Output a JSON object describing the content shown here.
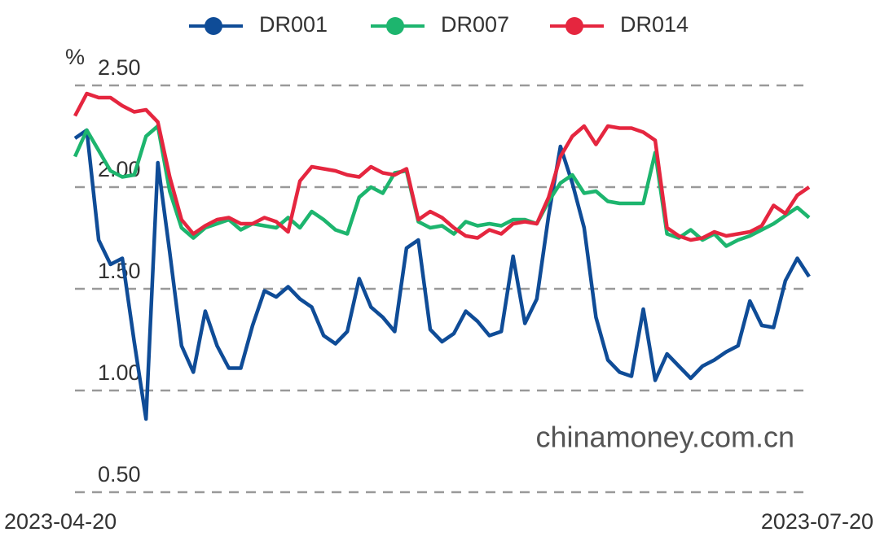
{
  "chart_data": {
    "type": "line",
    "y_unit": "%",
    "watermark": "chinamoney.com.cn",
    "categories": [
      "2023-04-20",
      null,
      null,
      null,
      null,
      null,
      null,
      null,
      null,
      null,
      null,
      null,
      null,
      null,
      null,
      null,
      null,
      null,
      null,
      null,
      null,
      null,
      null,
      null,
      null,
      null,
      null,
      null,
      null,
      null,
      null,
      null,
      null,
      null,
      null,
      null,
      null,
      null,
      null,
      null,
      null,
      null,
      null,
      null,
      null,
      null,
      null,
      null,
      null,
      null,
      null,
      null,
      null,
      null,
      null,
      null,
      null,
      null,
      null,
      null,
      null,
      null,
      "2023-07-20"
    ],
    "series": [
      {
        "name": "DR001",
        "color": "#0f4c97",
        "values": [
          2.24,
          2.28,
          1.74,
          1.62,
          1.65,
          1.24,
          0.86,
          2.12,
          1.68,
          1.22,
          1.09,
          1.39,
          1.22,
          1.11,
          1.11,
          1.32,
          1.49,
          1.46,
          1.51,
          1.45,
          1.41,
          1.27,
          1.23,
          1.29,
          1.55,
          1.41,
          1.36,
          1.29,
          1.7,
          1.74,
          1.3,
          1.24,
          1.28,
          1.39,
          1.34,
          1.27,
          1.29,
          1.66,
          1.33,
          1.45,
          1.86,
          2.2,
          2.02,
          1.8,
          1.36,
          1.15,
          1.09,
          1.07,
          1.4,
          1.05,
          1.18,
          1.12,
          1.06,
          1.12,
          1.15,
          1.19,
          1.22,
          1.44,
          1.32,
          1.31,
          1.54,
          1.65,
          1.56
        ]
      },
      {
        "name": "DR007",
        "color": "#1db56e",
        "values": [
          2.15,
          2.28,
          2.18,
          2.08,
          2.05,
          2.06,
          2.25,
          2.3,
          1.98,
          1.8,
          1.75,
          1.8,
          1.82,
          1.84,
          1.79,
          1.82,
          1.81,
          1.8,
          1.85,
          1.8,
          1.88,
          1.84,
          1.79,
          1.77,
          1.95,
          2.0,
          1.97,
          2.07,
          2.08,
          1.83,
          1.8,
          1.81,
          1.77,
          1.83,
          1.81,
          1.82,
          1.81,
          1.84,
          1.84,
          1.82,
          1.93,
          2.02,
          2.06,
          1.97,
          1.98,
          1.93,
          1.92,
          1.92,
          1.92,
          2.17,
          1.77,
          1.75,
          1.79,
          1.74,
          1.77,
          1.71,
          1.74,
          1.76,
          1.79,
          1.82,
          1.86,
          1.9,
          1.85
        ]
      },
      {
        "name": "DR014",
        "color": "#e5263f",
        "values": [
          2.35,
          2.46,
          2.44,
          2.44,
          2.4,
          2.37,
          2.38,
          2.32,
          2.05,
          1.84,
          1.77,
          1.81,
          1.84,
          1.85,
          1.82,
          1.82,
          1.85,
          1.83,
          1.78,
          2.03,
          2.1,
          2.09,
          2.08,
          2.06,
          2.05,
          2.1,
          2.07,
          2.06,
          2.09,
          1.84,
          1.88,
          1.85,
          1.8,
          1.76,
          1.75,
          1.79,
          1.77,
          1.82,
          1.83,
          1.82,
          1.95,
          2.15,
          2.25,
          2.3,
          2.21,
          2.3,
          2.29,
          2.29,
          2.27,
          2.23,
          1.8,
          1.76,
          1.74,
          1.75,
          1.78,
          1.76,
          1.77,
          1.78,
          1.81,
          1.91,
          1.87,
          1.96,
          2.0
        ]
      }
    ],
    "ylim": [
      0.5,
      2.5
    ],
    "yticks": [
      {
        "value": 0.5,
        "label": "0.50"
      },
      {
        "value": 1.0,
        "label": "1.00"
      },
      {
        "value": 1.5,
        "label": "1.50"
      },
      {
        "value": 2.0,
        "label": "2.00"
      },
      {
        "value": 2.5,
        "label": "2.50"
      }
    ],
    "grid": true,
    "legend": "top"
  }
}
